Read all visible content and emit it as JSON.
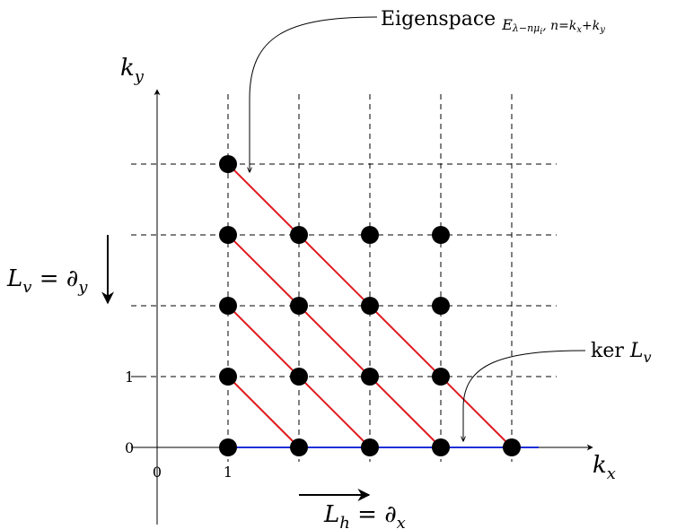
{
  "axes": {
    "x_label_base": "k",
    "x_label_sub": "x",
    "y_label_base": "k",
    "y_label_sub": "y"
  },
  "tick_labels": {
    "x_zero": "0",
    "x_one": "1",
    "y_zero": "0",
    "y_one": "1"
  },
  "operators": {
    "Lv_lhs_base": "L",
    "Lv_lhs_sub": "v",
    "Lv_eq": " = ",
    "Lv_rhs_base": "∂",
    "Lv_rhs_sub": "y",
    "Lh_lhs_base": "L",
    "Lh_lhs_sub": "h",
    "Lh_eq": " = ",
    "Lh_rhs_base": "∂",
    "Lh_rhs_sub": "x"
  },
  "annotations": {
    "eigenspace_word": "Eigenspace ",
    "eigenspace_E": "E",
    "eigenspace_sub": "λ−nμ",
    "eigenspace_sub_i": "i",
    "eigenspace_cond": ", n=k",
    "eigenspace_cond_x": "x",
    "eigenspace_cond_plus": "+k",
    "eigenspace_cond_y": "y",
    "kernel_word": "ker ",
    "kernel_L": "L",
    "kernel_sub": "v"
  },
  "lattice": {
    "points": [
      [
        1,
        4
      ],
      [
        1,
        3
      ],
      [
        2,
        3
      ],
      [
        3,
        3
      ],
      [
        4,
        3
      ],
      [
        1,
        2
      ],
      [
        2,
        2
      ],
      [
        3,
        2
      ],
      [
        4,
        2
      ],
      [
        1,
        1
      ],
      [
        2,
        1
      ],
      [
        3,
        1
      ],
      [
        4,
        1
      ],
      [
        1,
        0
      ],
      [
        2,
        0
      ],
      [
        3,
        0
      ],
      [
        4,
        0
      ],
      [
        5,
        0
      ]
    ],
    "diagonals": [
      [
        [
          1,
          1
        ],
        [
          2,
          0
        ]
      ],
      [
        [
          1,
          2
        ],
        [
          3,
          0
        ]
      ],
      [
        [
          1,
          3
        ],
        [
          4,
          0
        ]
      ],
      [
        [
          1,
          4
        ],
        [
          5,
          0
        ]
      ]
    ]
  },
  "colors": {
    "diagonal": "#e0191e",
    "kernel_line": "#1f2fd8",
    "grid": "#000000",
    "point": "#000000"
  }
}
